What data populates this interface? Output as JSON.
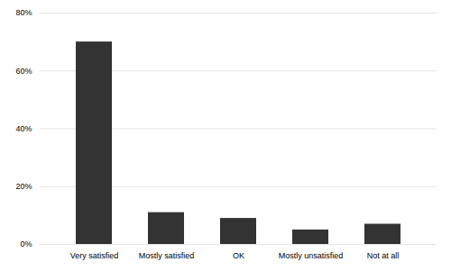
{
  "chart_data": {
    "type": "bar",
    "categories": [
      "Very satisfied",
      "Mostly satisfied",
      "OK",
      "Mostly unsatisfied",
      "Not at all"
    ],
    "values": [
      0.7,
      0.11,
      0.09,
      0.05,
      0.07
    ],
    "color": "#333333",
    "ylim": [
      0,
      0.8
    ],
    "yticks": [
      {
        "value": 0.0,
        "label": "0%"
      },
      {
        "value": 0.2,
        "label": "20%"
      },
      {
        "value": 0.4,
        "label": "40%"
      },
      {
        "value": 0.6,
        "label": "60%"
      },
      {
        "value": 0.8,
        "label": "80%"
      }
    ],
    "grid": true
  }
}
